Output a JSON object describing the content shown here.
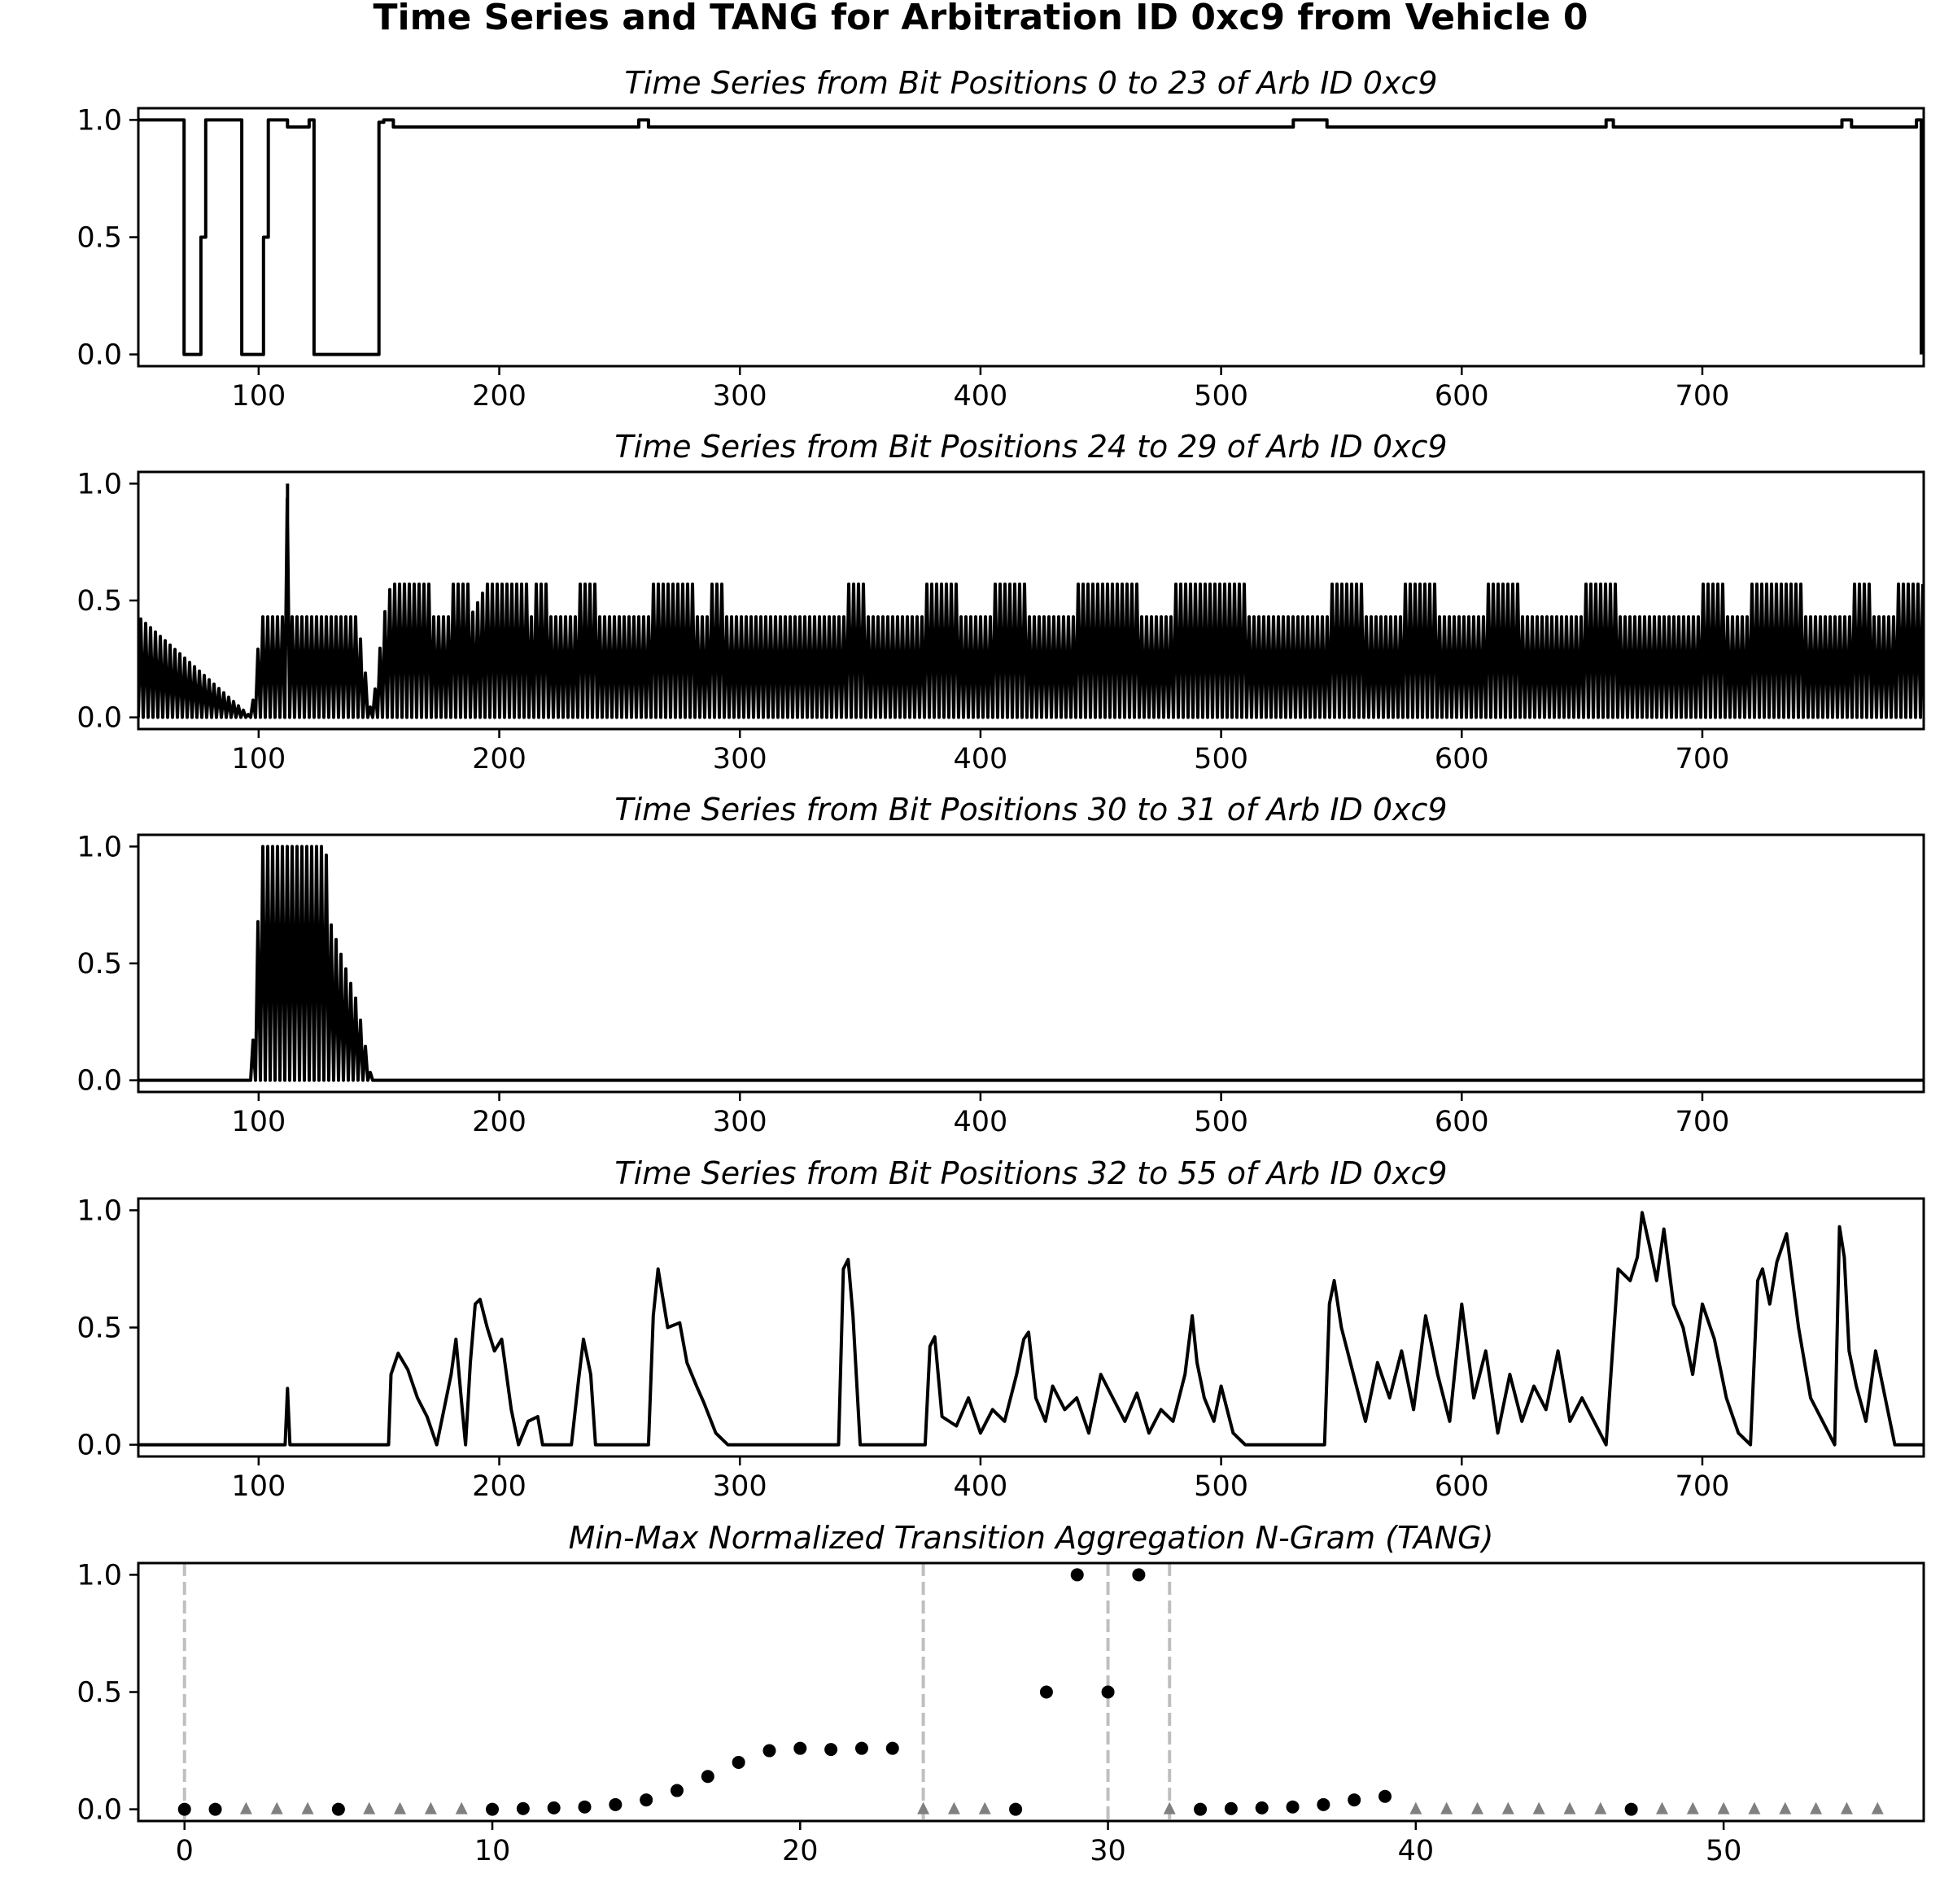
{
  "figure": {
    "title": "Time Series and TANG for Arbitration ID 0xc9 from Vehicle 0"
  },
  "chart_data": [
    {
      "type": "line",
      "title": "Time Series from Bit Positions 0 to 23 of Arb ID 0xc9",
      "xlim": [
        50,
        792
      ],
      "ylim": [
        -0.05,
        1.05
      ],
      "x_ticks": [
        100,
        200,
        300,
        400,
        500,
        600,
        700
      ],
      "y_ticks": [
        0.0,
        0.5,
        1.0
      ],
      "grid": false,
      "series": [
        {
          "style": "line",
          "color": "#000000",
          "x": [
            50,
            69,
            69,
            76,
            76,
            78,
            78,
            93,
            93,
            102,
            102,
            104,
            104,
            112,
            112,
            121,
            121,
            123,
            123,
            150,
            150,
            152,
            152,
            156,
            156,
            258,
            258,
            262,
            262,
            530,
            530,
            544,
            544,
            660,
            660,
            663,
            663,
            758,
            758,
            762,
            762,
            789,
            789,
            791,
            791
          ],
          "y": [
            1.0,
            1.0,
            0.0,
            0.0,
            0.5,
            0.5,
            1.0,
            1.0,
            0.0,
            0.0,
            0.5,
            0.5,
            1.0,
            1.0,
            0.97,
            0.97,
            1.0,
            1.0,
            0.0,
            0.0,
            0.99,
            0.99,
            1.0,
            1.0,
            0.97,
            0.97,
            1.0,
            1.0,
            0.97,
            0.97,
            1.0,
            1.0,
            0.97,
            0.97,
            1.0,
            1.0,
            0.97,
            0.97,
            1.0,
            1.0,
            0.97,
            0.97,
            1.0,
            1.0,
            0.0
          ]
        }
      ]
    },
    {
      "type": "line",
      "title": "Time Series from Bit Positions 24 to 29 of Arb ID 0xc9",
      "xlim": [
        50,
        792
      ],
      "ylim": [
        -0.05,
        1.05
      ],
      "x_ticks": [
        100,
        200,
        300,
        400,
        500,
        600,
        700
      ],
      "y_ticks": [
        0.0,
        0.5,
        1.0
      ],
      "grid": false,
      "series": [
        {
          "style": "line",
          "color": "#000000",
          "x": [
            50,
            97,
            101,
            111,
            112,
            113,
            128,
            141,
            147,
            152,
            155,
            172,
            172,
            180,
            180,
            188,
            188,
            195,
            205,
            212,
            212,
            215,
            215,
            220,
            220,
            233,
            233,
            240,
            240,
            263,
            263,
            282,
            282,
            287,
            287,
            293,
            293,
            345,
            345,
            352,
            352,
            377,
            377,
            390,
            390,
            405,
            405,
            420,
            420,
            440,
            440,
            465,
            465,
            480,
            480,
            510,
            510,
            545,
            545,
            560,
            560,
            575,
            575,
            590,
            590,
            610,
            610,
            625,
            625,
            650,
            650,
            665,
            665,
            700,
            700,
            710,
            710,
            720,
            720,
            742,
            742,
            763,
            763,
            771,
            771,
            780,
            780,
            792
          ],
          "y": [
            0.43,
            0.0,
            0.43,
            0.43,
            1.0,
            0.43,
            0.43,
            0.43,
            0.0,
            0.43,
            0.57,
            0.57,
            0.43,
            0.43,
            0.57,
            0.57,
            0.43,
            0.57,
            0.57,
            0.57,
            0.43,
            0.43,
            0.57,
            0.57,
            0.43,
            0.43,
            0.57,
            0.57,
            0.43,
            0.43,
            0.57,
            0.57,
            0.43,
            0.43,
            0.57,
            0.57,
            0.43,
            0.43,
            0.57,
            0.57,
            0.43,
            0.43,
            0.57,
            0.57,
            0.43,
            0.43,
            0.57,
            0.57,
            0.43,
            0.43,
            0.57,
            0.57,
            0.43,
            0.43,
            0.57,
            0.57,
            0.43,
            0.43,
            0.57,
            0.57,
            0.43,
            0.43,
            0.57,
            0.57,
            0.43,
            0.43,
            0.57,
            0.57,
            0.43,
            0.43,
            0.57,
            0.57,
            0.43,
            0.43,
            0.57,
            0.57,
            0.43,
            0.43,
            0.57,
            0.57,
            0.43,
            0.43,
            0.57,
            0.57,
            0.43,
            0.43,
            0.57,
            0.57
          ]
        }
      ]
    },
    {
      "type": "line",
      "title": "Time Series from Bit Positions 30 to 31 of Arb ID 0xc9",
      "xlim": [
        50,
        792
      ],
      "ylim": [
        -0.05,
        1.05
      ],
      "x_ticks": [
        100,
        200,
        300,
        400,
        500,
        600,
        700
      ],
      "y_ticks": [
        0.0,
        0.5,
        1.0
      ],
      "grid": false,
      "series": [
        {
          "style": "line",
          "color": "#000000",
          "x": [
            50,
            97,
            101,
            128,
            129,
            141,
            147,
            792
          ],
          "y": [
            0.0,
            0.0,
            1.0,
            1.0,
            0.7,
            0.33,
            0.0,
            0.0
          ]
        }
      ]
    },
    {
      "type": "line",
      "title": "Time Series from Bit Positions 32 to 55 of Arb ID 0xc9",
      "xlim": [
        50,
        792
      ],
      "ylim": [
        -0.05,
        1.05
      ],
      "x_ticks": [
        100,
        200,
        300,
        400,
        500,
        600,
        700
      ],
      "y_ticks": [
        0.0,
        0.5,
        1.0
      ],
      "grid": false,
      "series": [
        {
          "style": "line",
          "color": "#000000",
          "x": [
            50,
            111,
            112,
            113,
            154,
            155,
            158,
            162,
            166,
            170,
            174,
            180,
            182,
            184,
            186,
            188,
            190,
            192,
            195,
            198,
            201,
            205,
            208,
            212,
            216,
            218,
            230,
            233,
            235,
            238,
            240,
            262,
            264,
            266,
            270,
            275,
            278,
            282,
            285,
            290,
            295,
            341,
            343,
            345,
            347,
            350,
            377,
            379,
            381,
            384,
            390,
            395,
            400,
            405,
            410,
            415,
            418,
            420,
            423,
            427,
            430,
            435,
            440,
            445,
            450,
            455,
            460,
            465,
            470,
            475,
            480,
            485,
            488,
            490,
            493,
            497,
            500,
            505,
            510,
            543,
            545,
            547,
            550,
            555,
            560,
            565,
            570,
            575,
            580,
            585,
            590,
            595,
            600,
            605,
            610,
            615,
            620,
            625,
            630,
            635,
            640,
            645,
            650,
            660,
            665,
            670,
            673,
            675,
            678,
            681,
            684,
            688,
            692,
            696,
            700,
            705,
            710,
            715,
            720,
            723,
            725,
            728,
            731,
            735,
            740,
            745,
            755,
            757,
            759,
            761,
            764,
            768,
            772,
            776,
            780,
            792
          ],
          "y": [
            0.0,
            0.0,
            0.24,
            0.0,
            0.0,
            0.3,
            0.39,
            0.32,
            0.2,
            0.12,
            0.0,
            0.3,
            0.45,
            0.22,
            0.0,
            0.35,
            0.6,
            0.62,
            0.5,
            0.4,
            0.45,
            0.15,
            0.0,
            0.1,
            0.12,
            0.0,
            0.0,
            0.28,
            0.45,
            0.3,
            0.0,
            0.0,
            0.55,
            0.75,
            0.5,
            0.52,
            0.35,
            0.25,
            0.18,
            0.05,
            0.0,
            0.0,
            0.75,
            0.79,
            0.55,
            0.0,
            0.0,
            0.42,
            0.46,
            0.12,
            0.08,
            0.2,
            0.05,
            0.15,
            0.1,
            0.3,
            0.45,
            0.48,
            0.2,
            0.1,
            0.25,
            0.15,
            0.2,
            0.05,
            0.3,
            0.2,
            0.1,
            0.22,
            0.05,
            0.15,
            0.1,
            0.3,
            0.55,
            0.35,
            0.2,
            0.1,
            0.25,
            0.05,
            0.0,
            0.0,
            0.6,
            0.7,
            0.5,
            0.3,
            0.1,
            0.35,
            0.2,
            0.4,
            0.15,
            0.55,
            0.3,
            0.1,
            0.6,
            0.2,
            0.4,
            0.05,
            0.3,
            0.1,
            0.25,
            0.15,
            0.4,
            0.1,
            0.2,
            0.0,
            0.75,
            0.7,
            0.8,
            0.99,
            0.85,
            0.7,
            0.92,
            0.6,
            0.5,
            0.3,
            0.6,
            0.45,
            0.2,
            0.05,
            0.0,
            0.7,
            0.75,
            0.6,
            0.78,
            0.9,
            0.5,
            0.2,
            0.0,
            0.93,
            0.8,
            0.4,
            0.25,
            0.1,
            0.4,
            0.2,
            0.0,
            0.0
          ]
        }
      ]
    },
    {
      "type": "scatter",
      "title": "Min-Max Normalized Transition Aggregation N-Gram (TANG)",
      "xlim": [
        -1.5,
        56.5
      ],
      "ylim": [
        -0.05,
        1.05
      ],
      "x_ticks": [
        0,
        10,
        20,
        30,
        40,
        50
      ],
      "y_ticks": [
        0.0,
        0.5,
        1.0
      ],
      "grid": false,
      "vlines": [
        0,
        24,
        30,
        32
      ],
      "series": [
        {
          "marker": "circle",
          "color": "#000000",
          "x": [
            0,
            1,
            5,
            10,
            11,
            12,
            13,
            14,
            15,
            16,
            17,
            18,
            19,
            20,
            21,
            22,
            23,
            27,
            28,
            29,
            30,
            31,
            33,
            34,
            35,
            36,
            37,
            38,
            39,
            47
          ],
          "y": [
            0.0,
            0.0,
            0.0,
            0.0,
            0.003,
            0.006,
            0.01,
            0.02,
            0.04,
            0.08,
            0.14,
            0.2,
            0.25,
            0.26,
            0.255,
            0.26,
            0.26,
            0.0,
            0.5,
            1.0,
            0.5,
            1.0,
            0.0,
            0.003,
            0.006,
            0.01,
            0.02,
            0.04,
            0.055,
            0.0
          ]
        },
        {
          "marker": "triangle",
          "color": "#808080",
          "x": [
            2,
            3,
            4,
            6,
            7,
            8,
            9,
            24,
            25,
            26,
            32,
            40,
            41,
            42,
            43,
            44,
            45,
            46,
            48,
            49,
            50,
            51,
            52,
            53,
            54,
            55
          ],
          "y": [
            0,
            0,
            0,
            0,
            0,
            0,
            0,
            0,
            0,
            0,
            0,
            0,
            0,
            0,
            0,
            0,
            0,
            0,
            0,
            0,
            0,
            0,
            0,
            0,
            0,
            0
          ]
        }
      ]
    }
  ]
}
